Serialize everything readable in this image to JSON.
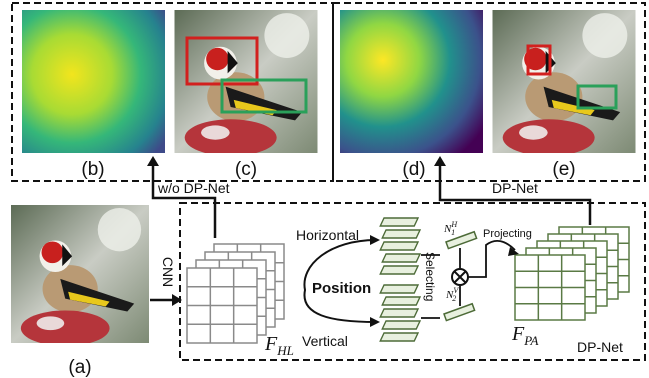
{
  "panels": [
    "(b)",
    "(c)",
    "(d)",
    "(e)"
  ],
  "input_label": "(a)",
  "arrows": {
    "without": "w/o DP-Net",
    "with": "DP-Net"
  },
  "cnn": "CNN",
  "module": {
    "name": "DP-Net",
    "horizontal": "Horizontal",
    "vertical": "Vertical",
    "position": "Position",
    "selecting": "Selecting",
    "projecting": "Projecting",
    "n_h": {
      "base": "N",
      "sub": "1",
      "sup": "H"
    },
    "n_v": {
      "base": "N",
      "sub": "2",
      "sup": "V"
    },
    "f_hl": {
      "base": "F",
      "sub": "HL"
    },
    "f_pa": {
      "base": "F",
      "sub": "PA"
    }
  }
}
